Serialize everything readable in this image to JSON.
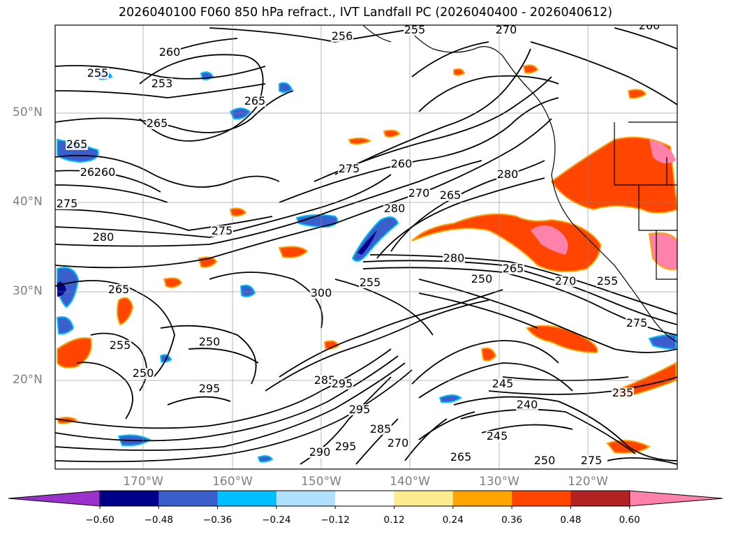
{
  "title": "2026040100 F060 850 hPa refract., IVT Landfall PC (2026040400 - 2026040612)",
  "map": {
    "lat_labels": [
      "50°N",
      "40°N",
      "30°N",
      "20°N"
    ],
    "lon_labels": [
      "170°W",
      "160°W",
      "150°W",
      "140°W",
      "130°W",
      "120°W"
    ],
    "grid": true,
    "contour_labels": [
      "260",
      "255",
      "253",
      "265",
      "265",
      "265",
      "260",
      "260",
      "256",
      "255",
      "270",
      "260",
      "275",
      "260",
      "280",
      "270",
      "265",
      "280",
      "275",
      "280",
      "275",
      "265",
      "255",
      "250",
      "250",
      "295",
      "300",
      "255",
      "285",
      "295",
      "280",
      "265",
      "270",
      "275",
      "255",
      "250",
      "245",
      "235",
      "240",
      "245",
      "265",
      "250",
      "275",
      "295",
      "295",
      "290",
      "285",
      "270"
    ]
  },
  "colorbar": {
    "colors": [
      "#9932cc",
      "#00008b",
      "#3a5fcd",
      "#00bfff",
      "#b0e2ff",
      "#ffffff",
      "#fceb8f",
      "#ffa500",
      "#ff4500",
      "#b22222",
      "#ff82ab"
    ],
    "tick_labels": [
      "−0.60",
      "−0.48",
      "−0.36",
      "−0.24",
      "−0.12",
      "0.12",
      "0.24",
      "0.36",
      "0.48",
      "0.60"
    ]
  }
}
